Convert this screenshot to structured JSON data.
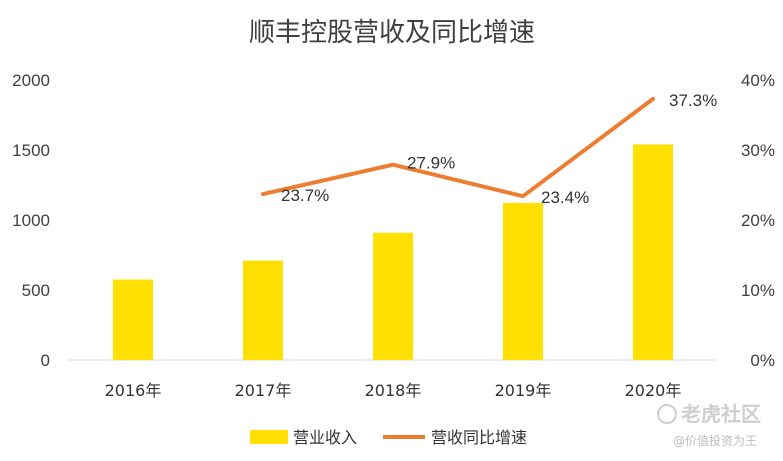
{
  "chart_data": {
    "type": "bar",
    "title": "顺丰控股营收及同比增速",
    "categories": [
      "2016年",
      "2017年",
      "2018年",
      "2019年",
      "2020年"
    ],
    "series": [
      {
        "name": "营业收入",
        "type": "bar",
        "axis": "left",
        "values": [
          575,
          710,
          909,
          1122,
          1540
        ]
      },
      {
        "name": "营收同比增速",
        "type": "line",
        "axis": "right",
        "values": [
          null,
          23.7,
          27.9,
          23.4,
          37.3
        ],
        "labels": [
          "",
          "23.7%",
          "27.9%",
          "23.4%",
          "37.3%"
        ]
      }
    ],
    "ylim": [
      0,
      2000
    ],
    "y_ticks": [
      "0",
      "500",
      "1000",
      "1500",
      "2000"
    ],
    "y2lim": [
      0,
      40
    ],
    "y2_ticks": [
      "0%",
      "10%",
      "20%",
      "30%",
      "40%"
    ],
    "legend_position": "bottom",
    "grid": false,
    "colors": {
      "bar": "#FFE000",
      "line": "#ED7D31",
      "axis": "#d9d9d9"
    }
  },
  "watermark": {
    "main": "老虎社区",
    "sub": "@价值投资为王"
  }
}
